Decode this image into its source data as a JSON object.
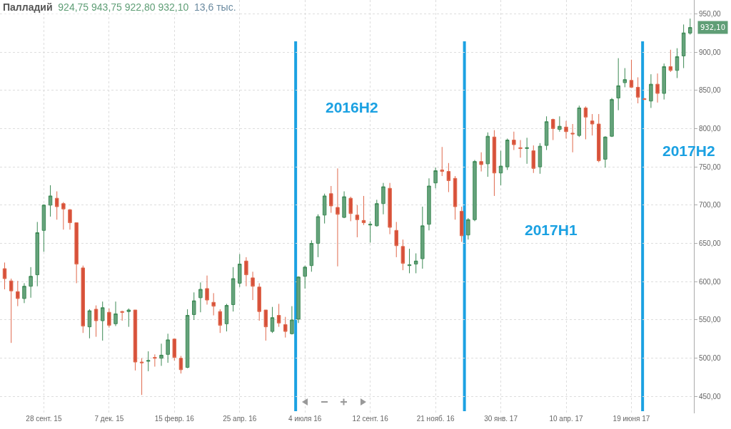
{
  "chart_data": {
    "type": "candlestick",
    "title": "Палладий",
    "subtitle": "924,75 943,75 922,80 932,10",
    "annotations": [
      "13,6 тыс.",
      {
        "text": "932,10",
        "x": "2017-08-21",
        "y": 932.1
      }
    ],
    "x": [
      "2015-08-17",
      "2015-08-24",
      "2015-08-31",
      "2015-09-07",
      "2015-09-14",
      "2015-09-21",
      "2015-09-28",
      "2015-10-05",
      "2015-10-12",
      "2015-10-19",
      "2015-10-26",
      "2015-11-02",
      "2015-11-09",
      "2015-11-16",
      "2015-11-23",
      "2015-11-30",
      "2015-12-07",
      "2015-12-14",
      "2015-12-21",
      "2015-12-28",
      "2016-01-04",
      "2016-01-11",
      "2016-01-18",
      "2016-01-25",
      "2016-02-01",
      "2016-02-08",
      "2016-02-15",
      "2016-02-22",
      "2016-02-29",
      "2016-03-07",
      "2016-03-14",
      "2016-03-21",
      "2016-03-28",
      "2016-04-04",
      "2016-04-11",
      "2016-04-18",
      "2016-04-25",
      "2016-05-02",
      "2016-05-09",
      "2016-05-16",
      "2016-05-23",
      "2016-05-30",
      "2016-06-06",
      "2016-06-13",
      "2016-06-20",
      "2016-06-27",
      "2016-07-04",
      "2016-07-11",
      "2016-07-18",
      "2016-07-25",
      "2016-08-01",
      "2016-08-08",
      "2016-08-15",
      "2016-08-22",
      "2016-08-29",
      "2016-09-05",
      "2016-09-12",
      "2016-09-19",
      "2016-09-26",
      "2016-10-03",
      "2016-10-10",
      "2016-10-17",
      "2016-10-24",
      "2016-10-31",
      "2016-11-07",
      "2016-11-14",
      "2016-11-21",
      "2016-11-28",
      "2016-12-05",
      "2016-12-12",
      "2016-12-19",
      "2016-12-26",
      "2017-01-02",
      "2017-01-09",
      "2017-01-16",
      "2017-01-23",
      "2017-01-30",
      "2017-02-06",
      "2017-02-13",
      "2017-02-20",
      "2017-02-27",
      "2017-03-06",
      "2017-03-13",
      "2017-03-20",
      "2017-03-27",
      "2017-04-03",
      "2017-04-10",
      "2017-04-17",
      "2017-04-24",
      "2017-05-01",
      "2017-05-08",
      "2017-05-15",
      "2017-05-22",
      "2017-05-29",
      "2017-06-05",
      "2017-06-12",
      "2017-06-19",
      "2017-06-26",
      "2017-07-03",
      "2017-07-10",
      "2017-07-17",
      "2017-07-24",
      "2017-07-31",
      "2017-08-07",
      "2017-08-14",
      "2017-08-21"
    ],
    "ohlc": [
      [
        617,
        625,
        590,
        604
      ],
      [
        601,
        604,
        520,
        588
      ],
      [
        587,
        601,
        568,
        578
      ],
      [
        578,
        598,
        572,
        594
      ],
      [
        594,
        619,
        579,
        607
      ],
      [
        609,
        678,
        594,
        664
      ],
      [
        667,
        701,
        639,
        700
      ],
      [
        700,
        726,
        685,
        712
      ],
      [
        709,
        718,
        681,
        698
      ],
      [
        702,
        704,
        668,
        695
      ],
      [
        694,
        695,
        668,
        677
      ],
      [
        677,
        677,
        598,
        623
      ],
      [
        618,
        621,
        533,
        542
      ],
      [
        541,
        564,
        526,
        562
      ],
      [
        564,
        569,
        528,
        549
      ],
      [
        549,
        574,
        523,
        566
      ],
      [
        560,
        565,
        540,
        543
      ],
      [
        545,
        574,
        542,
        558
      ],
      [
        561,
        562,
        549,
        560
      ],
      [
        561,
        565,
        541,
        563
      ],
      [
        563,
        563,
        484,
        495
      ],
      [
        495,
        500,
        452,
        494
      ],
      [
        496,
        509,
        483,
        497
      ],
      [
        501,
        505,
        489,
        500
      ],
      [
        500,
        519,
        490,
        504
      ],
      [
        505,
        532,
        494,
        524
      ],
      [
        525,
        525,
        497,
        501
      ],
      [
        500,
        503,
        480,
        485
      ],
      [
        488,
        564,
        487,
        556
      ],
      [
        557,
        586,
        550,
        575
      ],
      [
        579,
        599,
        560,
        590
      ],
      [
        591,
        608,
        570,
        576
      ],
      [
        573,
        585,
        556,
        568
      ],
      [
        561,
        564,
        533,
        543
      ],
      [
        545,
        571,
        535,
        569
      ],
      [
        570,
        619,
        561,
        604
      ],
      [
        598,
        636,
        593,
        623
      ],
      [
        627,
        632,
        594,
        609
      ],
      [
        605,
        613,
        576,
        594
      ],
      [
        593,
        598,
        549,
        561
      ],
      [
        563,
        563,
        523,
        541
      ],
      [
        535,
        567,
        533,
        553
      ],
      [
        556,
        571,
        541,
        546
      ],
      [
        544,
        554,
        527,
        535
      ],
      [
        532,
        568,
        531,
        550
      ],
      [
        551,
        607,
        546,
        606
      ],
      [
        607,
        621,
        591,
        619
      ],
      [
        621,
        654,
        613,
        650
      ],
      [
        650,
        688,
        632,
        685
      ],
      [
        687,
        715,
        676,
        712
      ],
      [
        715,
        725,
        690,
        699
      ],
      [
        697,
        748,
        620,
        688
      ],
      [
        684,
        718,
        683,
        711
      ],
      [
        709,
        711,
        679,
        689
      ],
      [
        687,
        700,
        658,
        681
      ],
      [
        680,
        712,
        674,
        677
      ],
      [
        674,
        679,
        651,
        675
      ],
      [
        673,
        707,
        672,
        702
      ],
      [
        702,
        729,
        688,
        724
      ],
      [
        722,
        729,
        662,
        671
      ],
      [
        667,
        678,
        632,
        647
      ],
      [
        646,
        655,
        615,
        624
      ],
      [
        621,
        643,
        611,
        622
      ],
      [
        623,
        637,
        611,
        627
      ],
      [
        630,
        698,
        617,
        673
      ],
      [
        675,
        735,
        667,
        725
      ],
      [
        729,
        749,
        722,
        745
      ],
      [
        746,
        776,
        738,
        744
      ],
      [
        744,
        755,
        717,
        732
      ],
      [
        735,
        738,
        681,
        698
      ],
      [
        692,
        698,
        652,
        660
      ],
      [
        661,
        683,
        655,
        681
      ],
      [
        681,
        759,
        679,
        757
      ],
      [
        757,
        769,
        744,
        753
      ],
      [
        754,
        795,
        737,
        790
      ],
      [
        789,
        798,
        712,
        742
      ],
      [
        742,
        771,
        726,
        751
      ],
      [
        750,
        787,
        746,
        785
      ],
      [
        785,
        796,
        772,
        779
      ],
      [
        775,
        785,
        762,
        774
      ],
      [
        774,
        788,
        754,
        775
      ],
      [
        771,
        778,
        742,
        748
      ],
      [
        750,
        781,
        741,
        777
      ],
      [
        778,
        816,
        772,
        809
      ],
      [
        812,
        813,
        785,
        800
      ],
      [
        799,
        816,
        796,
        803
      ],
      [
        802,
        810,
        787,
        796
      ],
      [
        794,
        806,
        769,
        793
      ],
      [
        791,
        830,
        789,
        827
      ],
      [
        827,
        829,
        786,
        815
      ],
      [
        810,
        819,
        791,
        806
      ],
      [
        806,
        819,
        756,
        758
      ],
      [
        760,
        790,
        749,
        789
      ],
      [
        790,
        840,
        789,
        838
      ],
      [
        840,
        892,
        824,
        856
      ],
      [
        860,
        879,
        854,
        864
      ],
      [
        863,
        890,
        853,
        854
      ],
      [
        854,
        867,
        833,
        841
      ],
      [
        839,
        840,
        838,
        838
      ],
      [
        836,
        871,
        827,
        858
      ],
      [
        858,
        872,
        834,
        846
      ],
      [
        846,
        885,
        838,
        881
      ],
      [
        881,
        903,
        874,
        876
      ],
      [
        876,
        905,
        866,
        894
      ],
      [
        895,
        936,
        879,
        925
      ],
      [
        924.75,
        943.75,
        922.8,
        932.1
      ]
    ],
    "xlim": [
      "2015-08-12",
      "2017-08-25"
    ],
    "xticks": [
      {
        "value": "2015-09-28",
        "label": "28 сент. 15"
      },
      {
        "value": "2015-12-07",
        "label": "7 дек. 15"
      },
      {
        "value": "2016-02-15",
        "label": "15 февр. 16"
      },
      {
        "value": "2016-04-25",
        "label": "25 апр. 16"
      },
      {
        "value": "2016-07-04",
        "label": "4 июля 16"
      },
      {
        "value": "2016-09-12",
        "label": "12 сент. 16"
      },
      {
        "value": "2016-11-21",
        "label": "21 нояб. 16"
      },
      {
        "value": "2017-01-30",
        "label": "30 янв. 17"
      },
      {
        "value": "2017-04-10",
        "label": "10 апр. 17"
      },
      {
        "value": "2017-06-19",
        "label": "19 июня 17"
      }
    ],
    "ylim": [
      428,
      968
    ],
    "yticks": [
      {
        "value": 450,
        "label": "450,00"
      },
      {
        "value": 500,
        "label": "500,00"
      },
      {
        "value": 550,
        "label": "550,00"
      },
      {
        "value": 600,
        "label": "600,00"
      },
      {
        "value": 650,
        "label": "650,00"
      },
      {
        "value": 700,
        "label": "700,00"
      },
      {
        "value": 750,
        "label": "750,00"
      },
      {
        "value": 800,
        "label": "800,00"
      },
      {
        "value": 850,
        "label": "850,00"
      },
      {
        "value": 900,
        "label": "900,00"
      },
      {
        "value": 950,
        "label": "950,00"
      }
    ],
    "ref_lines": [
      {
        "axis": "x",
        "value": "2016-06-24",
        "color": "#1ba1e2",
        "label": "2016H2"
      },
      {
        "axis": "x",
        "value": "2016-12-22",
        "color": "#1ba1e2",
        "label": "2017H1"
      },
      {
        "axis": "x",
        "value": "2017-07-01",
        "color": "#1ba1e2",
        "label": "2017H2"
      }
    ],
    "grid": true
  }
}
